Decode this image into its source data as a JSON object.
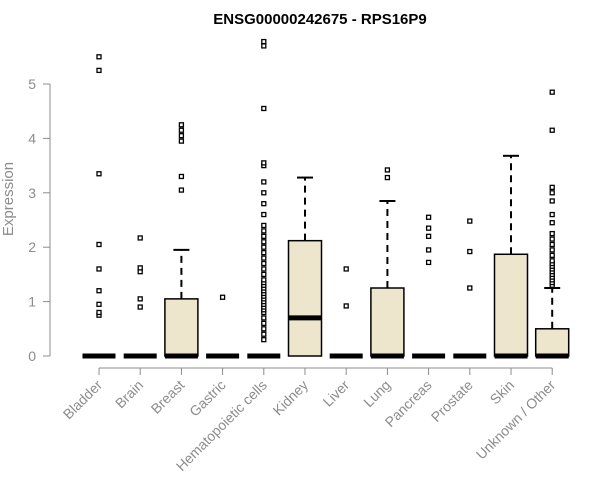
{
  "chart_data": {
    "type": "boxplot",
    "title": "ENSG00000242675 - RPS16P9",
    "ylabel": "Expression",
    "xlabel": "",
    "ylim": [
      0,
      5.75
    ],
    "yticks": [
      0,
      1,
      2,
      3,
      4,
      5
    ],
    "grid": false,
    "colors": {
      "box_fill": "#ede6cc",
      "box_stroke": "#000000",
      "axis": "#8c8c8c"
    },
    "categories": [
      "Bladder",
      "Brain",
      "Breast",
      "Gastric",
      "Hematopoietic cells",
      "Kidney",
      "Liver",
      "Lung",
      "Pancreas",
      "Prostate",
      "Skin",
      "Unknown / Other"
    ],
    "boxes": [
      {
        "category": "Bladder",
        "whisker_low": 0,
        "q1": 0,
        "median": 0,
        "q3": 0,
        "whisker_high": 0,
        "outliers": [
          0.75,
          0.8,
          0.95,
          1.2,
          1.6,
          2.05,
          3.35,
          5.25,
          5.5
        ]
      },
      {
        "category": "Brain",
        "whisker_low": 0,
        "q1": 0,
        "median": 0,
        "q3": 0,
        "whisker_high": 0,
        "outliers": [
          0.9,
          1.05,
          1.55,
          1.62,
          2.17
        ]
      },
      {
        "category": "Breast",
        "whisker_low": 0,
        "q1": 0,
        "median": 0,
        "q3": 1.05,
        "whisker_high": 1.95,
        "outliers": [
          3.05,
          3.3,
          3.95,
          4.05,
          4.15,
          4.25
        ]
      },
      {
        "category": "Gastric",
        "whisker_low": 0,
        "q1": 0,
        "median": 0,
        "q3": 0,
        "whisker_high": 0,
        "outliers": [
          1.08
        ]
      },
      {
        "category": "Hematopoietic cells",
        "whisker_low": 0,
        "q1": 0,
        "median": 0,
        "q3": 0,
        "whisker_high": 0,
        "outliers": [
          0.3,
          0.4,
          0.5,
          0.6,
          0.7,
          0.8,
          0.85,
          0.9,
          0.95,
          1.0,
          1.05,
          1.1,
          1.15,
          1.2,
          1.25,
          1.3,
          1.35,
          1.4,
          1.5,
          1.6,
          1.7,
          1.8,
          1.9,
          2.0,
          2.1,
          2.2,
          2.3,
          2.4,
          2.6,
          2.8,
          3.0,
          3.2,
          3.5,
          3.55,
          4.55,
          5.7,
          5.78
        ]
      },
      {
        "category": "Kidney",
        "whisker_low": 0,
        "q1": 0,
        "median": 0.7,
        "q3": 2.12,
        "whisker_high": 3.28,
        "outliers": []
      },
      {
        "category": "Liver",
        "whisker_low": 0,
        "q1": 0,
        "median": 0,
        "q3": 0,
        "whisker_high": 0,
        "outliers": [
          0.92,
          1.6
        ]
      },
      {
        "category": "Lung",
        "whisker_low": 0,
        "q1": 0,
        "median": 0,
        "q3": 1.25,
        "whisker_high": 2.85,
        "outliers": [
          3.28,
          3.42
        ]
      },
      {
        "category": "Pancreas",
        "whisker_low": 0,
        "q1": 0,
        "median": 0,
        "q3": 0,
        "whisker_high": 0,
        "outliers": [
          1.72,
          1.95,
          2.2,
          2.35,
          2.55
        ]
      },
      {
        "category": "Prostate",
        "whisker_low": 0,
        "q1": 0,
        "median": 0,
        "q3": 0,
        "whisker_high": 0,
        "outliers": [
          1.25,
          1.92,
          2.48
        ]
      },
      {
        "category": "Skin",
        "whisker_low": 0,
        "q1": 0,
        "median": 0,
        "q3": 1.87,
        "whisker_high": 3.68,
        "outliers": []
      },
      {
        "category": "Unknown / Other",
        "whisker_low": 0,
        "q1": 0,
        "median": 0,
        "q3": 0.5,
        "whisker_high": 1.25,
        "outliers": [
          1.3,
          1.35,
          1.4,
          1.45,
          1.5,
          1.55,
          1.6,
          1.65,
          1.7,
          1.75,
          1.85,
          1.95,
          2.05,
          2.15,
          2.25,
          2.45,
          2.6,
          2.85,
          3.0,
          3.1,
          4.15,
          4.85
        ]
      }
    ]
  }
}
